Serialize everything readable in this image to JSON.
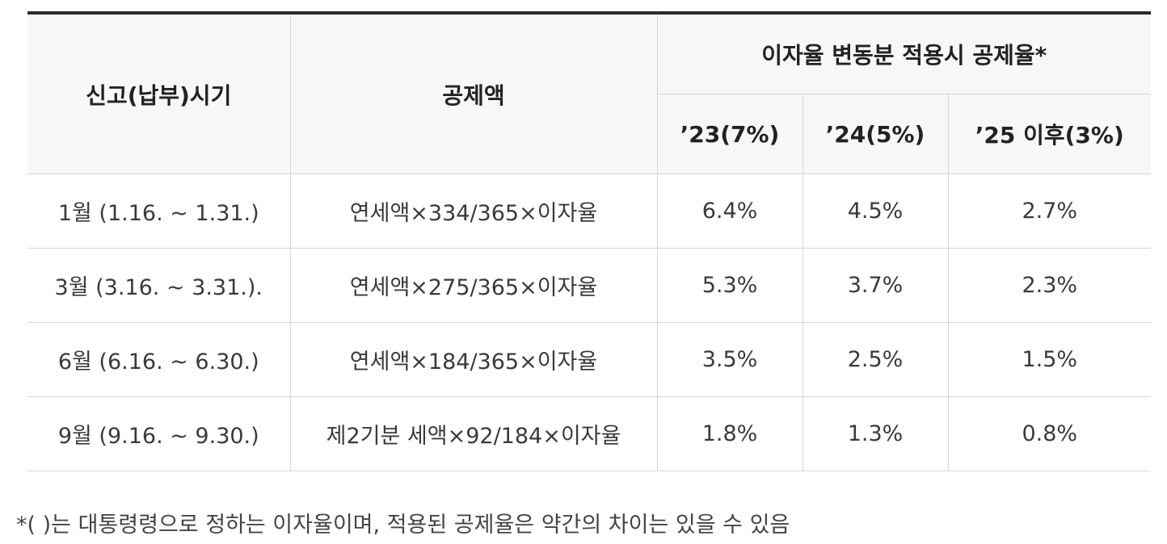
{
  "table": {
    "headers": {
      "period": "신고(납부)시기",
      "deduction": "공제액",
      "rate_group": "이자율 변동분 적용시 공제율*",
      "years": [
        "’23(7%)",
        "’24(5%)",
        "’25 이후(3%)"
      ]
    },
    "rows": [
      {
        "period": "1월 (1.16. ~ 1.31.)",
        "formula": "연세액×334/365×이자율",
        "y23": "6.4%",
        "y24": "4.5%",
        "y25": "2.7%"
      },
      {
        "period": "3월 (3.16. ~ 3.31.).",
        "formula": "연세액×275/365×이자율",
        "y23": "5.3%",
        "y24": "3.7%",
        "y25": "2.3%"
      },
      {
        "period": "6월 (6.16. ~ 6.30.)",
        "formula": "연세액×184/365×이자율",
        "y23": "3.5%",
        "y24": "2.5%",
        "y25": "1.5%"
      },
      {
        "period": "9월 (9.16. ~ 9.30.)",
        "formula": "제2기분 세액×92/184×이자율",
        "y23": "1.8%",
        "y24": "1.3%",
        "y25": "0.8%"
      }
    ]
  },
  "footnote": "*( )는 대통령령으로 정하는 이자율이며, 적용된 공제율은 약간의 차이는 있을 수 있음"
}
